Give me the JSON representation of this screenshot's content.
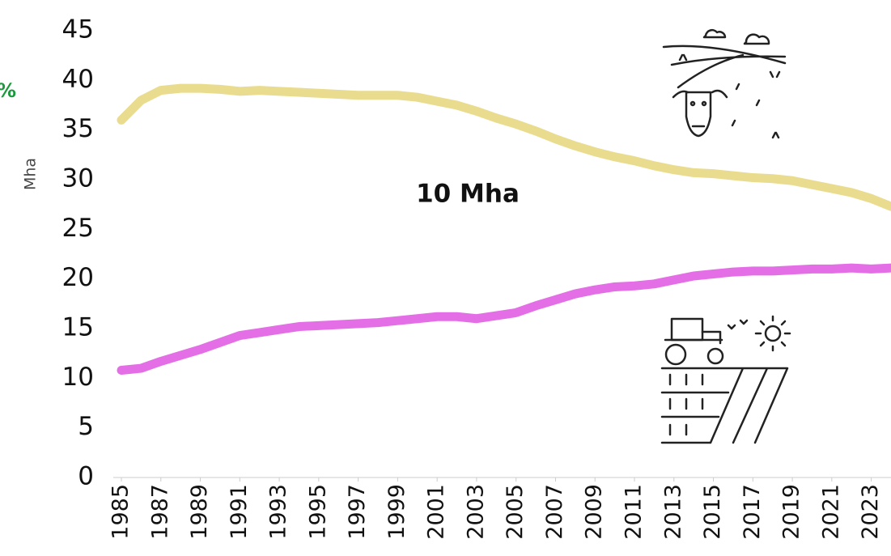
{
  "chart_data": {
    "type": "line",
    "y_label": "Mha",
    "annotations": [
      "%",
      "10 Mha"
    ],
    "x": [
      1985,
      1986,
      1987,
      1988,
      1989,
      1990,
      1991,
      1992,
      1993,
      1994,
      1995,
      1996,
      1997,
      1998,
      1999,
      2000,
      2001,
      2002,
      2003,
      2004,
      2005,
      2006,
      2007,
      2008,
      2009,
      2010,
      2011,
      2012,
      2013,
      2014,
      2015,
      2016,
      2017,
      2018,
      2019,
      2020,
      2021,
      2022,
      2023,
      2024
    ],
    "series": [
      {
        "color": "#e9dc8e",
        "values": [
          36.0,
          38.0,
          39.0,
          39.2,
          39.2,
          39.1,
          38.9,
          39.0,
          38.9,
          38.8,
          38.7,
          38.6,
          38.5,
          38.5,
          38.5,
          38.3,
          37.9,
          37.5,
          36.9,
          36.2,
          35.6,
          34.9,
          34.1,
          33.4,
          32.8,
          32.3,
          31.9,
          31.4,
          31.0,
          30.7,
          30.6,
          30.4,
          30.2,
          30.1,
          29.9,
          29.5,
          29.1,
          28.7,
          28.1,
          27.3
        ]
      },
      {
        "color": "#e46ee6",
        "values": [
          10.8,
          11.0,
          11.7,
          12.3,
          12.9,
          13.6,
          14.3,
          14.6,
          14.9,
          15.2,
          15.3,
          15.4,
          15.5,
          15.6,
          15.8,
          16.0,
          16.2,
          16.2,
          16.0,
          16.3,
          16.6,
          17.3,
          17.9,
          18.5,
          18.9,
          19.2,
          19.3,
          19.5,
          19.9,
          20.3,
          20.5,
          20.7,
          20.8,
          20.8,
          20.9,
          21.0,
          21.0,
          21.1,
          21.0,
          21.1
        ]
      }
    ],
    "xlim": [
      1985,
      2024
    ],
    "xticks": [
      1985,
      1987,
      1989,
      1991,
      1993,
      1995,
      1997,
      1999,
      2001,
      2003,
      2005,
      2007,
      2009,
      2011,
      2013,
      2015,
      2017,
      2019,
      2021,
      2023
    ],
    "ylim": [
      0,
      45
    ],
    "yticks": [
      0,
      5,
      10,
      15,
      20,
      25,
      30,
      35,
      40,
      45
    ],
    "grid": false
  }
}
